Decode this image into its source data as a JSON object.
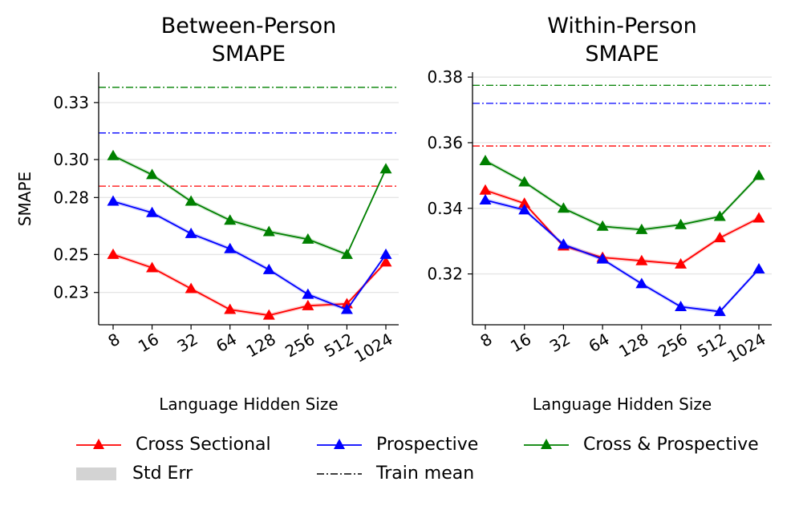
{
  "chart_data": [
    {
      "type": "line",
      "title": "Between-Person\nSMAPE",
      "title_lines": [
        "Between-Person",
        "SMAPE"
      ],
      "xlabel": "Language Hidden Size",
      "ylabel": "SMAPE",
      "categories": [
        "8",
        "16",
        "32",
        "64",
        "128",
        "256",
        "512",
        "1024"
      ],
      "ylim": [
        0.213,
        0.346
      ],
      "yticks": [
        0.23,
        0.25,
        0.28,
        0.3,
        0.33
      ],
      "ytick_labels": [
        "0.23",
        "0.25",
        "0.28",
        "0.30",
        "0.33"
      ],
      "grid": "horizontal",
      "series": [
        {
          "name": "Cross Sectional",
          "color": "#ff0000",
          "values": [
            0.25,
            0.243,
            0.232,
            0.221,
            0.218,
            0.223,
            0.224,
            0.246
          ],
          "train_mean": 0.286
        },
        {
          "name": "Prospective",
          "color": "#0000ff",
          "values": [
            0.278,
            0.272,
            0.261,
            0.253,
            0.242,
            0.229,
            0.221,
            0.25
          ],
          "train_mean": 0.314
        },
        {
          "name": "Cross & Prospective",
          "color": "#008000",
          "values": [
            0.302,
            0.292,
            0.278,
            0.268,
            0.262,
            0.258,
            0.25,
            0.295
          ],
          "train_mean": 0.338
        }
      ]
    },
    {
      "type": "line",
      "title": "Within-Person\nSMAPE",
      "title_lines": [
        "Within-Person",
        "SMAPE"
      ],
      "xlabel": "Language Hidden Size",
      "ylabel": "",
      "categories": [
        "8",
        "16",
        "32",
        "64",
        "128",
        "256",
        "512",
        "1024"
      ],
      "ylim": [
        0.3045,
        0.3815
      ],
      "yticks": [
        0.32,
        0.34,
        0.36,
        0.38
      ],
      "ytick_labels": [
        "0.32",
        "0.34",
        "0.36",
        "0.38"
      ],
      "grid": "horizontal",
      "series": [
        {
          "name": "Cross Sectional",
          "color": "#ff0000",
          "values": [
            0.3455,
            0.3415,
            0.3285,
            0.325,
            0.324,
            0.323,
            0.331,
            0.337
          ],
          "train_mean": 0.359
        },
        {
          "name": "Prospective",
          "color": "#0000ff",
          "values": [
            0.3425,
            0.3395,
            0.329,
            0.3245,
            0.317,
            0.31,
            0.3085,
            0.3215
          ],
          "train_mean": 0.372
        },
        {
          "name": "Cross & Prospective",
          "color": "#008000",
          "values": [
            0.3545,
            0.348,
            0.34,
            0.3345,
            0.3335,
            0.335,
            0.3375,
            0.35
          ],
          "train_mean": 0.3775
        }
      ]
    }
  ],
  "legend": {
    "items": [
      {
        "label": "Cross Sectional",
        "kind": "line-marker",
        "color": "#ff0000"
      },
      {
        "label": "Prospective",
        "kind": "line-marker",
        "color": "#0000ff"
      },
      {
        "label": "Cross & Prospective",
        "kind": "line-marker",
        "color": "#008000"
      },
      {
        "label": "Std Err",
        "kind": "patch",
        "color": "#d3d3d3"
      },
      {
        "label": "Train mean",
        "kind": "dashdot",
        "color": "#000000"
      }
    ]
  }
}
